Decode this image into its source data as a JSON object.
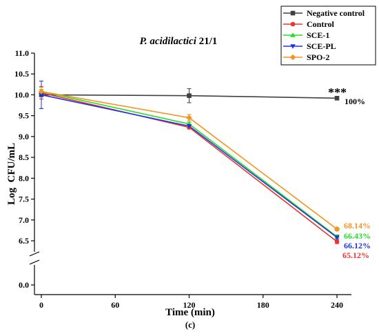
{
  "chart_data": {
    "type": "line",
    "title": "P. acidilactici 21/1",
    "xlabel": "Time (min)",
    "ylabel": "Log  CFU/mL",
    "panel_label": "(c)",
    "x": [
      0,
      120,
      240
    ],
    "xlim": [
      0,
      250
    ],
    "x_ticks": [
      "0",
      "60",
      "120",
      "180",
      "240"
    ],
    "y_ticks": [
      "6.5",
      "7.0",
      "7.5",
      "8.0",
      "8.5",
      "9.0",
      "9.5",
      "10.0",
      "10.5",
      "11.0"
    ],
    "y_break_tick": "0.0",
    "ylim_upper_segment": [
      6.1,
      11.0
    ],
    "axis_break": true,
    "grid": false,
    "legend_position": "top-right",
    "series": [
      {
        "name": "Negative control",
        "color": "#404040",
        "marker": "square",
        "values": [
          10.0,
          9.98,
          9.92
        ],
        "errors": [
          0.33,
          0.17,
          0.03
        ]
      },
      {
        "name": "Control",
        "color": "#e8352f",
        "marker": "circle",
        "values": [
          10.05,
          9.22,
          6.48
        ],
        "errors": [
          0.15,
          0.04,
          0.05
        ]
      },
      {
        "name": "SCE-1",
        "color": "#22dd22",
        "marker": "triangle-up",
        "values": [
          10.08,
          9.3,
          6.6
        ],
        "errors": [
          0.05,
          0.04,
          0.04
        ]
      },
      {
        "name": "SCE-PL",
        "color": "#1f33e0",
        "marker": "triangle-down",
        "values": [
          10.0,
          9.25,
          6.58
        ],
        "errors": [
          0.33,
          0.04,
          0.05
        ]
      },
      {
        "name": "SPO-2",
        "color": "#f39423",
        "marker": "diamond",
        "values": [
          10.08,
          9.45,
          6.78
        ],
        "errors": [
          0.1,
          0.08,
          0.04
        ]
      }
    ],
    "annotations": [
      {
        "text": "***",
        "color": "#000000"
      },
      {
        "text": "100%",
        "color": "#000000"
      },
      {
        "text": "68.14%",
        "color": "#f39423"
      },
      {
        "text": "66.43%",
        "color": "#22dd22"
      },
      {
        "text": "66.12%",
        "color": "#1f33e0"
      },
      {
        "text": "65.12%",
        "color": "#e8352f"
      }
    ]
  }
}
